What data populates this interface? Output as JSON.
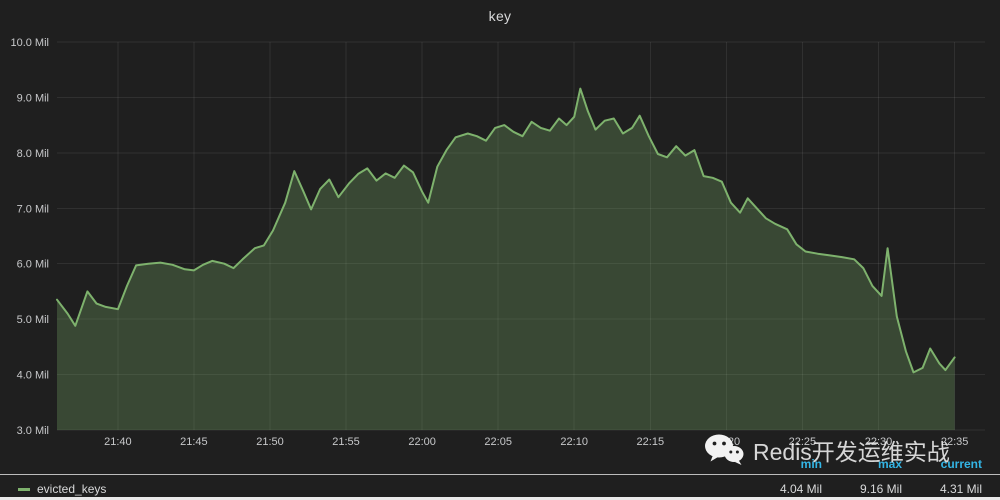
{
  "chart": {
    "title": "key"
  },
  "chart_data": {
    "type": "line",
    "title": "key",
    "x_unit": "minutes since 21:36",
    "x_range": [
      0,
      61
    ],
    "ylim": [
      3.0,
      10.0
    ],
    "grid": true,
    "legend_position": "bottom",
    "x_ticks": [
      {
        "pos": 4,
        "label": "21:40"
      },
      {
        "pos": 9,
        "label": "21:45"
      },
      {
        "pos": 14,
        "label": "21:50"
      },
      {
        "pos": 19,
        "label": "21:55"
      },
      {
        "pos": 24,
        "label": "22:00"
      },
      {
        "pos": 29,
        "label": "22:05"
      },
      {
        "pos": 34,
        "label": "22:10"
      },
      {
        "pos": 39,
        "label": "22:15"
      },
      {
        "pos": 44,
        "label": "22:20"
      },
      {
        "pos": 49,
        "label": "22:25"
      },
      {
        "pos": 54,
        "label": "22:30"
      },
      {
        "pos": 59,
        "label": "22:35"
      }
    ],
    "y_ticks": [
      {
        "pos": 3.0,
        "label": "3.0 Mil"
      },
      {
        "pos": 4.0,
        "label": "4.0 Mil"
      },
      {
        "pos": 5.0,
        "label": "5.0 Mil"
      },
      {
        "pos": 6.0,
        "label": "6.0 Mil"
      },
      {
        "pos": 7.0,
        "label": "7.0 Mil"
      },
      {
        "pos": 8.0,
        "label": "8.0 Mil"
      },
      {
        "pos": 9.0,
        "label": "9.0 Mil"
      },
      {
        "pos": 10.0,
        "label": "10.0 Mil"
      }
    ],
    "series": [
      {
        "name": "evicted_keys",
        "color": "#7eb26d",
        "fill_opacity": 0.28,
        "points": [
          [
            0,
            5.35
          ],
          [
            0.7,
            5.1
          ],
          [
            1.2,
            4.88
          ],
          [
            2,
            5.5
          ],
          [
            2.6,
            5.28
          ],
          [
            3.2,
            5.22
          ],
          [
            4,
            5.18
          ],
          [
            4.6,
            5.6
          ],
          [
            5.2,
            5.97
          ],
          [
            6,
            6.0
          ],
          [
            6.8,
            6.02
          ],
          [
            7.6,
            5.98
          ],
          [
            8.4,
            5.9
          ],
          [
            9,
            5.88
          ],
          [
            9.6,
            5.98
          ],
          [
            10.2,
            6.05
          ],
          [
            11,
            6.0
          ],
          [
            11.6,
            5.92
          ],
          [
            12.2,
            6.08
          ],
          [
            13,
            6.28
          ],
          [
            13.6,
            6.33
          ],
          [
            14.2,
            6.6
          ],
          [
            15,
            7.1
          ],
          [
            15.6,
            7.67
          ],
          [
            16.2,
            7.3
          ],
          [
            16.7,
            6.98
          ],
          [
            17.3,
            7.35
          ],
          [
            17.9,
            7.52
          ],
          [
            18.5,
            7.2
          ],
          [
            19.2,
            7.45
          ],
          [
            19.8,
            7.62
          ],
          [
            20.4,
            7.72
          ],
          [
            21,
            7.5
          ],
          [
            21.6,
            7.63
          ],
          [
            22.2,
            7.55
          ],
          [
            22.8,
            7.77
          ],
          [
            23.4,
            7.65
          ],
          [
            24,
            7.3
          ],
          [
            24.4,
            7.1
          ],
          [
            25,
            7.75
          ],
          [
            25.6,
            8.05
          ],
          [
            26.2,
            8.28
          ],
          [
            27,
            8.35
          ],
          [
            27.6,
            8.3
          ],
          [
            28.2,
            8.22
          ],
          [
            28.8,
            8.45
          ],
          [
            29.4,
            8.5
          ],
          [
            30,
            8.38
          ],
          [
            30.6,
            8.3
          ],
          [
            31.2,
            8.56
          ],
          [
            31.8,
            8.45
          ],
          [
            32.4,
            8.4
          ],
          [
            33,
            8.62
          ],
          [
            33.5,
            8.5
          ],
          [
            34,
            8.65
          ],
          [
            34.4,
            9.16
          ],
          [
            34.9,
            8.75
          ],
          [
            35.4,
            8.42
          ],
          [
            36,
            8.58
          ],
          [
            36.6,
            8.62
          ],
          [
            37.2,
            8.35
          ],
          [
            37.8,
            8.45
          ],
          [
            38.3,
            8.67
          ],
          [
            38.9,
            8.3
          ],
          [
            39.5,
            7.98
          ],
          [
            40.1,
            7.92
          ],
          [
            40.7,
            8.12
          ],
          [
            41.3,
            7.95
          ],
          [
            41.9,
            8.05
          ],
          [
            42.5,
            7.58
          ],
          [
            43.1,
            7.55
          ],
          [
            43.7,
            7.48
          ],
          [
            44.3,
            7.1
          ],
          [
            44.9,
            6.92
          ],
          [
            45.4,
            7.18
          ],
          [
            46,
            7.0
          ],
          [
            46.6,
            6.82
          ],
          [
            47.2,
            6.72
          ],
          [
            48,
            6.62
          ],
          [
            48.6,
            6.35
          ],
          [
            49.2,
            6.22
          ],
          [
            50,
            6.18
          ],
          [
            50.8,
            6.15
          ],
          [
            51.6,
            6.12
          ],
          [
            52.4,
            6.08
          ],
          [
            53,
            5.92
          ],
          [
            53.6,
            5.6
          ],
          [
            54.2,
            5.42
          ],
          [
            54.6,
            6.28
          ],
          [
            55.2,
            5.05
          ],
          [
            55.8,
            4.42
          ],
          [
            56.3,
            4.04
          ],
          [
            56.9,
            4.12
          ],
          [
            57.4,
            4.47
          ],
          [
            58,
            4.2
          ],
          [
            58.4,
            4.08
          ],
          [
            59,
            4.31
          ]
        ]
      }
    ]
  },
  "legend": {
    "series_label": "evicted_keys",
    "stats": [
      {
        "label": "min",
        "value": "4.04 Mil"
      },
      {
        "label": "max",
        "value": "9.16 Mil"
      },
      {
        "label": "current",
        "value": "4.31 Mil"
      }
    ]
  },
  "watermark": {
    "text": "Redis开发运维实战"
  },
  "colors": {
    "series": "#7eb26d",
    "stat_header": "#33b5e5",
    "background": "#1f1f1f"
  }
}
